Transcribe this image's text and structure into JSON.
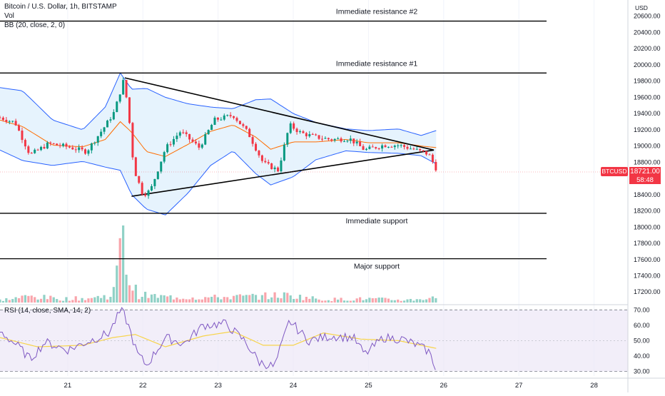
{
  "header": {
    "symbol_line": "Bitcoin / U.S. Dollar, 1h, BITSTAMP",
    "volume_label": "Vol",
    "bb_label": "BB (20, close, 2, 0)",
    "rsi_label": "RSI (14, close, SMA, 14, 2)",
    "currency": "USD"
  },
  "price_tag": {
    "symbol": "BTCUSD",
    "price": "18721.00",
    "countdown": "58:48",
    "color": "#f23645"
  },
  "colors": {
    "up": "#089981",
    "down": "#f23645",
    "bb_band": "#2962ff",
    "bb_basis": "#ff6d00",
    "bb_fill": "#e3f2fd",
    "rsi_line": "#7e57c2",
    "rsi_ma": "#f7d44a",
    "rsi_fill": "#ede7f6"
  },
  "chart_data": [
    {
      "type": "candlestick",
      "title": "Bitcoin / U.S. Dollar, 1h, BITSTAMP",
      "x_ticks": [
        "21",
        "22",
        "23",
        "24",
        "25",
        "26",
        "27",
        "28"
      ],
      "y_ticks": [
        "20600.00",
        "20400.00",
        "20200.00",
        "20000.00",
        "19800.00",
        "19600.00",
        "19400.00",
        "19200.00",
        "19000.00",
        "18800.00",
        "18600.00",
        "18400.00",
        "18200.00",
        "18000.00",
        "17800.00",
        "17600.00",
        "17400.00",
        "17200.00"
      ],
      "ylim": [
        17070,
        20800
      ],
      "x_range": [
        20.1,
        28.45
      ],
      "last_price": 18721,
      "annotations": [
        {
          "label": "Immediate resistance #2",
          "price": 20540
        },
        {
          "label": "Immediate resistance #1",
          "price": 19900
        },
        {
          "label": "Immediate support",
          "price": 18170
        },
        {
          "label": "Major support",
          "price": 17610
        }
      ],
      "triangle": {
        "upper": {
          "from": {
            "x": 21.76,
            "price": 19840
          },
          "to": {
            "x": 25.87,
            "price": 18950
          }
        },
        "lower": {
          "from": {
            "x": 21.85,
            "price": 18380
          },
          "to": {
            "x": 25.87,
            "price": 18950
          }
        }
      },
      "anchors": [
        {
          "x": 20.1,
          "price": 19350
        },
        {
          "x": 20.3,
          "price": 19290
        },
        {
          "x": 20.5,
          "price": 18890
        },
        {
          "x": 20.75,
          "price": 19030
        },
        {
          "x": 21.0,
          "price": 18990
        },
        {
          "x": 21.25,
          "price": 18930
        },
        {
          "x": 21.5,
          "price": 19250
        },
        {
          "x": 21.62,
          "price": 19420
        },
        {
          "x": 21.74,
          "price": 19800
        },
        {
          "x": 21.8,
          "price": 19500
        },
        {
          "x": 21.88,
          "price": 18720
        },
        {
          "x": 22.0,
          "price": 18400
        },
        {
          "x": 22.1,
          "price": 18450
        },
        {
          "x": 22.3,
          "price": 18970
        },
        {
          "x": 22.5,
          "price": 19180
        },
        {
          "x": 22.75,
          "price": 18980
        },
        {
          "x": 22.95,
          "price": 19320
        },
        {
          "x": 23.2,
          "price": 19380
        },
        {
          "x": 23.4,
          "price": 19160
        },
        {
          "x": 23.6,
          "price": 18790
        },
        {
          "x": 23.8,
          "price": 18700
        },
        {
          "x": 23.95,
          "price": 19260
        },
        {
          "x": 24.1,
          "price": 19160
        },
        {
          "x": 24.3,
          "price": 19110
        },
        {
          "x": 24.5,
          "price": 19080
        },
        {
          "x": 24.75,
          "price": 19090
        },
        {
          "x": 24.95,
          "price": 18950
        },
        {
          "x": 25.2,
          "price": 19010
        },
        {
          "x": 25.4,
          "price": 19010
        },
        {
          "x": 25.6,
          "price": 18960
        },
        {
          "x": 25.8,
          "price": 18900
        },
        {
          "x": 25.9,
          "price": 18721
        }
      ],
      "bollinger_anchors": [
        {
          "x": 20.1,
          "upper": 19720,
          "basis": 19320,
          "lower": 18950
        },
        {
          "x": 20.4,
          "upper": 19680,
          "basis": 19240,
          "lower": 18820
        },
        {
          "x": 20.8,
          "upper": 19320,
          "basis": 19010,
          "lower": 18760
        },
        {
          "x": 21.2,
          "upper": 19200,
          "basis": 18990,
          "lower": 18810
        },
        {
          "x": 21.5,
          "upper": 19480,
          "basis": 19080,
          "lower": 18740
        },
        {
          "x": 21.7,
          "upper": 19900,
          "basis": 19300,
          "lower": 18700
        },
        {
          "x": 21.85,
          "upper": 19700,
          "basis": 19170,
          "lower": 18400
        },
        {
          "x": 22.05,
          "upper": 19710,
          "basis": 18930,
          "lower": 18220
        },
        {
          "x": 22.3,
          "upper": 19600,
          "basis": 18870,
          "lower": 18150
        },
        {
          "x": 22.6,
          "upper": 19520,
          "basis": 19020,
          "lower": 18420
        },
        {
          "x": 22.9,
          "upper": 19480,
          "basis": 19180,
          "lower": 18760
        },
        {
          "x": 23.2,
          "upper": 19460,
          "basis": 19260,
          "lower": 18940
        },
        {
          "x": 23.5,
          "upper": 19570,
          "basis": 19110,
          "lower": 18660
        },
        {
          "x": 23.7,
          "upper": 19580,
          "basis": 18960,
          "lower": 18520
        },
        {
          "x": 24.0,
          "upper": 19400,
          "basis": 19050,
          "lower": 18620
        },
        {
          "x": 24.3,
          "upper": 19290,
          "basis": 19050,
          "lower": 18830
        },
        {
          "x": 24.7,
          "upper": 19210,
          "basis": 19080,
          "lower": 18940
        },
        {
          "x": 25.0,
          "upper": 19190,
          "basis": 19040,
          "lower": 18920
        },
        {
          "x": 25.4,
          "upper": 19210,
          "basis": 19040,
          "lower": 18910
        },
        {
          "x": 25.7,
          "upper": 19130,
          "basis": 19000,
          "lower": 18880
        },
        {
          "x": 25.9,
          "upper": 19190,
          "basis": 18980,
          "lower": 18780
        }
      ]
    },
    {
      "type": "bar",
      "title": "Vol",
      "volume_anchors": [
        {
          "x": 20.1,
          "level": 0.04
        },
        {
          "x": 20.5,
          "level": 0.1
        },
        {
          "x": 20.9,
          "level": 0.06
        },
        {
          "x": 21.3,
          "level": 0.07
        },
        {
          "x": 21.6,
          "level": 0.12
        },
        {
          "x": 21.74,
          "level": 1.0
        },
        {
          "x": 21.8,
          "level": 0.38
        },
        {
          "x": 21.95,
          "level": 0.12
        },
        {
          "x": 22.3,
          "level": 0.09
        },
        {
          "x": 22.8,
          "level": 0.08
        },
        {
          "x": 23.5,
          "level": 0.1
        },
        {
          "x": 23.9,
          "level": 0.12
        },
        {
          "x": 24.4,
          "level": 0.05
        },
        {
          "x": 25.0,
          "level": 0.06
        },
        {
          "x": 25.5,
          "level": 0.04
        },
        {
          "x": 25.9,
          "level": 0.08
        }
      ]
    },
    {
      "type": "line",
      "title": "RSI (14, close, SMA, 14, 2)",
      "y_ticks": [
        "70.00",
        "60.00",
        "50.00",
        "40.00",
        "30.00"
      ],
      "ylim": [
        27,
        72
      ],
      "band": [
        30,
        70
      ],
      "rsi_anchors": [
        {
          "x": 20.1,
          "value": 56
        },
        {
          "x": 20.35,
          "value": 46
        },
        {
          "x": 20.5,
          "value": 38
        },
        {
          "x": 20.7,
          "value": 49
        },
        {
          "x": 21.0,
          "value": 44
        },
        {
          "x": 21.3,
          "value": 50
        },
        {
          "x": 21.55,
          "value": 55
        },
        {
          "x": 21.72,
          "value": 71
        },
        {
          "x": 21.82,
          "value": 58
        },
        {
          "x": 21.92,
          "value": 42
        },
        {
          "x": 22.05,
          "value": 34
        },
        {
          "x": 22.3,
          "value": 52
        },
        {
          "x": 22.55,
          "value": 48
        },
        {
          "x": 22.8,
          "value": 60
        },
        {
          "x": 23.1,
          "value": 61
        },
        {
          "x": 23.35,
          "value": 50
        },
        {
          "x": 23.55,
          "value": 36
        },
        {
          "x": 23.75,
          "value": 33
        },
        {
          "x": 23.95,
          "value": 63
        },
        {
          "x": 24.2,
          "value": 50
        },
        {
          "x": 24.5,
          "value": 53
        },
        {
          "x": 24.8,
          "value": 52
        },
        {
          "x": 24.95,
          "value": 41
        },
        {
          "x": 25.2,
          "value": 52
        },
        {
          "x": 25.45,
          "value": 51
        },
        {
          "x": 25.65,
          "value": 47
        },
        {
          "x": 25.8,
          "value": 43
        },
        {
          "x": 25.9,
          "value": 32
        }
      ],
      "rsi_ma_anchors": [
        {
          "x": 20.1,
          "value": 52
        },
        {
          "x": 20.6,
          "value": 46
        },
        {
          "x": 21.2,
          "value": 47
        },
        {
          "x": 21.6,
          "value": 52
        },
        {
          "x": 21.9,
          "value": 54
        },
        {
          "x": 22.3,
          "value": 46
        },
        {
          "x": 22.8,
          "value": 53
        },
        {
          "x": 23.2,
          "value": 56
        },
        {
          "x": 23.6,
          "value": 47
        },
        {
          "x": 24.0,
          "value": 47
        },
        {
          "x": 24.4,
          "value": 55
        },
        {
          "x": 24.9,
          "value": 51
        },
        {
          "x": 25.4,
          "value": 50
        },
        {
          "x": 25.9,
          "value": 45
        }
      ]
    }
  ]
}
